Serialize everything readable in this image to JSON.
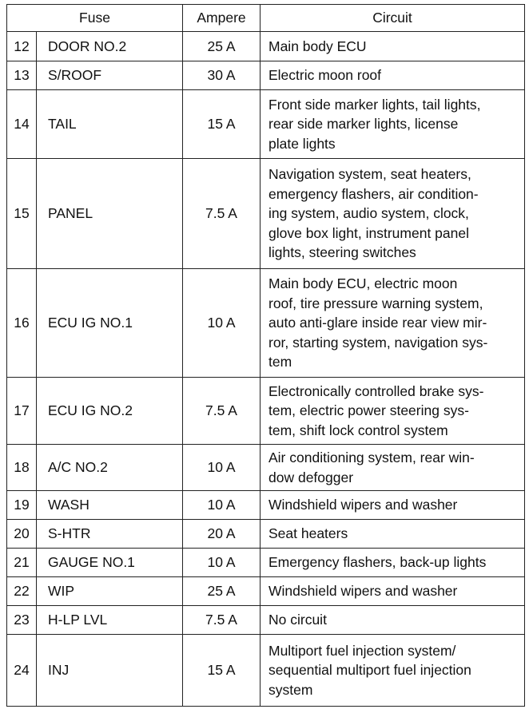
{
  "table": {
    "header": [
      "Fuse",
      "Ampere",
      "Circuit"
    ],
    "rows": [
      {
        "number": "12",
        "fuse": "DOOR NO.2",
        "ampere": "25 A",
        "circuit": [
          "Main body ECU"
        ]
      },
      {
        "number": "13",
        "fuse": "S/ROOF",
        "ampere": "30 A",
        "circuit": [
          "Electric moon roof"
        ]
      },
      {
        "number": "14",
        "fuse": "TAIL",
        "ampere": "15 A",
        "circuit": [
          "Front side marker lights, tail lights,",
          "rear side marker lights, license",
          "plate lights"
        ]
      },
      {
        "number": "15",
        "fuse": "PANEL",
        "ampere": "7.5 A",
        "circuit": [
          "Navigation system, seat heaters,",
          "emergency flashers, air condition-",
          "ing system, audio system, clock,",
          "glove box light, instrument panel",
          "lights, steering switches"
        ]
      },
      {
        "number": "16",
        "fuse": "ECU IG NO.1",
        "ampere": "10 A",
        "circuit": [
          "Main body ECU, electric moon",
          "roof, tire pressure warning system,",
          "auto anti-glare inside rear view mir-",
          "ror, starting system, navigation sys-",
          "tem"
        ]
      },
      {
        "number": "17",
        "fuse": "ECU IG NO.2",
        "ampere": "7.5 A",
        "circuit": [
          "Electronically controlled brake sys-",
          "tem, electric power steering sys-",
          "tem, shift lock control system"
        ]
      },
      {
        "number": "18",
        "fuse": "A/C NO.2",
        "ampere": "10 A",
        "circuit": [
          "Air conditioning system, rear win-",
          "dow defogger"
        ]
      },
      {
        "number": "19",
        "fuse": "WASH",
        "ampere": "10 A",
        "circuit": [
          "Windshield wipers and washer"
        ]
      },
      {
        "number": "20",
        "fuse": "S-HTR",
        "ampere": "20 A",
        "circuit": [
          "Seat heaters"
        ]
      },
      {
        "number": "21",
        "fuse": "GAUGE NO.1",
        "ampere": "10 A",
        "circuit": [
          "Emergency flashers, back-up lights"
        ]
      },
      {
        "number": "22",
        "fuse": "WIP",
        "ampere": "25 A",
        "circuit": [
          "Windshield wipers and washer"
        ]
      },
      {
        "number": "23",
        "fuse": "H-LP LVL",
        "ampere": "7.5 A",
        "circuit": [
          "No circuit"
        ]
      },
      {
        "number": "24",
        "fuse": "INJ",
        "ampere": "15 A",
        "circuit": [
          "Multiport fuel injection system/",
          "sequential multiport fuel injection",
          "system"
        ]
      }
    ]
  }
}
